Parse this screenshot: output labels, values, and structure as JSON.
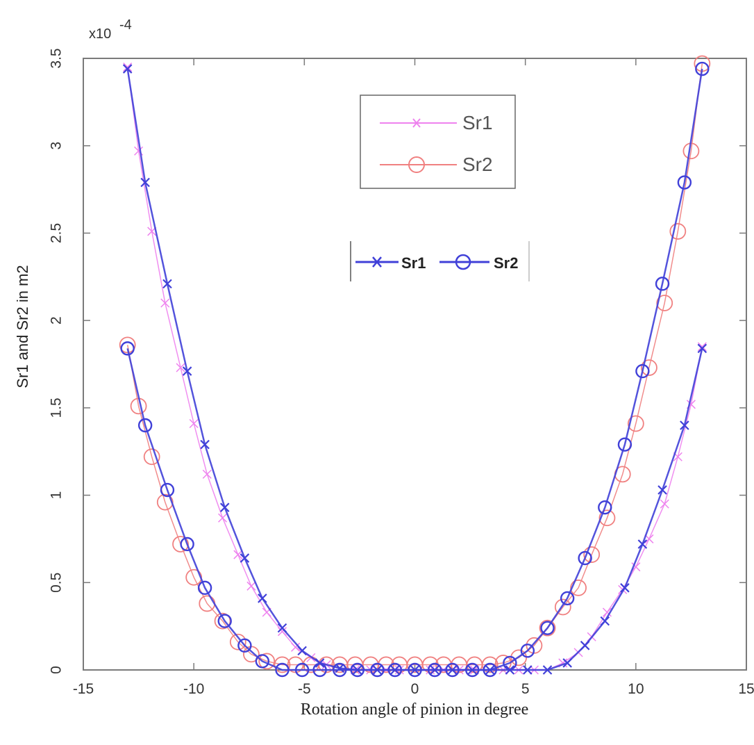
{
  "chart_data": {
    "type": "line",
    "xlabel": "Rotation angle of pinion in degree",
    "ylabel": "Sr1 and Sr2 in m2",
    "y_exponent_base": "x10",
    "y_exponent_power": "-4",
    "xlim": [
      -15,
      15
    ],
    "ylim": [
      0,
      3.5
    ],
    "xticks": [
      "-15",
      "-10",
      "-5",
      "0",
      "5",
      "10",
      "15"
    ],
    "yticks": [
      "0",
      "0.5",
      "1",
      "1.5",
      "2",
      "2.5",
      "3",
      "3.5"
    ],
    "legend_light": {
      "placement": "top-center",
      "entries": [
        "Sr1",
        "Sr2"
      ]
    },
    "legend_dark": {
      "placement": "center",
      "entries": [
        "Sr1",
        "Sr2"
      ]
    },
    "colors": {
      "light_sr1": "#ee82ee",
      "light_sr2": "#f08080",
      "dark": "#4040d8"
    },
    "series": [
      {
        "name": "Sr1",
        "style": "light-x",
        "x": [
          -13,
          -12.5,
          -11.9,
          -11.3,
          -10.6,
          -10.0,
          -9.4,
          -8.7,
          -8.0,
          -7.4,
          -6.7,
          -6.0,
          -5.4,
          -4.7,
          -4.0,
          -3.4,
          -2.7,
          -2.0,
          -1.3,
          -0.7,
          0,
          0.7,
          1.3,
          2.0,
          2.7,
          3.4,
          4.0,
          4.7,
          5.4,
          6.0,
          6.7,
          7.4,
          8.0,
          8.7,
          9.4,
          10.0,
          10.6,
          11.3,
          11.9,
          12.5,
          13
        ],
        "y": [
          3.45,
          2.97,
          2.51,
          2.1,
          1.73,
          1.41,
          1.12,
          0.87,
          0.66,
          0.48,
          0.33,
          0.22,
          0.13,
          0.07,
          0.03,
          0.01,
          0,
          0,
          0,
          0,
          0,
          0,
          0,
          0,
          0,
          0,
          0,
          0,
          0,
          0,
          0.04,
          0.1,
          0.19,
          0.33,
          0.46,
          0.59,
          0.75,
          0.95,
          1.22,
          1.52,
          1.85
        ]
      },
      {
        "name": "Sr2",
        "style": "light-o",
        "x": [
          -13,
          -12.5,
          -11.9,
          -11.3,
          -10.6,
          -10.0,
          -9.4,
          -8.7,
          -8.0,
          -7.4,
          -6.7,
          -6.0,
          -5.4,
          -4.7,
          -4.0,
          -3.4,
          -2.7,
          -2.0,
          -1.3,
          -0.7,
          0,
          0.7,
          1.3,
          2.0,
          2.7,
          3.4,
          4.0,
          4.7,
          5.4,
          6.0,
          6.7,
          7.4,
          8.0,
          8.7,
          9.4,
          10.0,
          10.6,
          11.3,
          11.9,
          12.5,
          13
        ],
        "y": [
          1.86,
          1.51,
          1.22,
          0.96,
          0.72,
          0.53,
          0.38,
          0.28,
          0.16,
          0.09,
          0.05,
          0.03,
          0.03,
          0.03,
          0.03,
          0.03,
          0.03,
          0.03,
          0.03,
          0.03,
          0.03,
          0.03,
          0.03,
          0.03,
          0.03,
          0.03,
          0.04,
          0.07,
          0.14,
          0.24,
          0.36,
          0.47,
          0.66,
          0.87,
          1.12,
          1.41,
          1.73,
          2.1,
          2.51,
          2.97,
          3.47
        ]
      },
      {
        "name": "Sr1",
        "style": "dark-x",
        "x": [
          -13,
          -12.2,
          -11.2,
          -10.3,
          -9.5,
          -8.6,
          -7.7,
          -6.9,
          -6.0,
          -5.1,
          -4.3,
          -3.4,
          -2.6,
          -1.7,
          -0.9,
          0,
          0.9,
          1.7,
          2.6,
          3.4,
          4.3,
          5.1,
          6.0,
          6.9,
          7.7,
          8.6,
          9.5,
          10.3,
          11.2,
          12.2,
          13
        ],
        "y": [
          3.44,
          2.79,
          2.21,
          1.71,
          1.29,
          0.93,
          0.64,
          0.41,
          0.24,
          0.11,
          0.04,
          0.01,
          0,
          0,
          0,
          0,
          0,
          0,
          0,
          0,
          0,
          0,
          0,
          0.04,
          0.14,
          0.28,
          0.47,
          0.72,
          1.03,
          1.4,
          1.84
        ]
      },
      {
        "name": "Sr2",
        "style": "dark-o",
        "x": [
          -13,
          -12.2,
          -11.2,
          -10.3,
          -9.5,
          -8.6,
          -7.7,
          -6.9,
          -6.0,
          -5.1,
          -4.3,
          -3.4,
          -2.6,
          -1.7,
          -0.9,
          0,
          0.9,
          1.7,
          2.6,
          3.4,
          4.3,
          5.1,
          6.0,
          6.9,
          7.7,
          8.6,
          9.5,
          10.3,
          11.2,
          12.2,
          13
        ],
        "y": [
          1.84,
          1.4,
          1.03,
          0.72,
          0.47,
          0.28,
          0.14,
          0.05,
          0,
          0,
          0,
          0,
          0,
          0,
          0,
          0,
          0,
          0,
          0,
          0,
          0.04,
          0.11,
          0.24,
          0.41,
          0.64,
          0.93,
          1.29,
          1.71,
          2.21,
          2.79,
          3.44
        ]
      }
    ]
  }
}
